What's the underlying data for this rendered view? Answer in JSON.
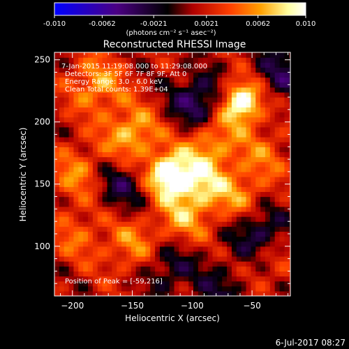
{
  "chart_data": {
    "type": "heatmap",
    "title": "Reconstructed RHESSI Image",
    "xlabel": "Heliocentric X (arcsec)",
    "ylabel": "Heliocentric Y (arcsec)",
    "xlim": [
      -215,
      -18
    ],
    "ylim": [
      60,
      256
    ],
    "xticks": [
      -200,
      -150,
      -100,
      -50
    ],
    "yticks": [
      100,
      150,
      200,
      250
    ],
    "colorbar": {
      "ticks": [
        "-0.010",
        "-0.0062",
        "-0.0021",
        "0.0021",
        "0.0062",
        "0.010"
      ],
      "range": [
        -0.01,
        0.01
      ],
      "colormap": [
        "#0000ff",
        "#4b0082",
        "#000000",
        "#b00000",
        "#ff4000",
        "#ffa000",
        "#ffffa0",
        "#ffffff"
      ]
    },
    "annotations": {
      "time": "7-Jan-2015 11:19:08.000 to 11:29:08.000",
      "detectors": "Detectors: 3F 5F 6F 7F 8F 9F, Att 0",
      "energy": "Energy Range: 3.0 - 6.0 keV",
      "clean": "Clean    Total counts: 1.39E+04",
      "peak": "Position of Peak = [-59,216]"
    },
    "peak": [
      -59,
      216
    ],
    "sources": [
      {
        "x": -120,
        "y": 158,
        "value": 0.0095
      },
      {
        "x": -59,
        "y": 216,
        "value": 0.01
      },
      {
        "x": -150,
        "y": 190,
        "value": 0.006
      },
      {
        "x": -85,
        "y": 185,
        "value": 0.005
      },
      {
        "x": -180,
        "y": 230,
        "value": 0.005
      },
      {
        "x": -95,
        "y": 150,
        "value": 0.006
      },
      {
        "x": -195,
        "y": 160,
        "value": 0.004
      },
      {
        "x": -60,
        "y": 140,
        "value": 0.004
      },
      {
        "x": -150,
        "y": 100,
        "value": 0.004
      },
      {
        "x": -110,
        "y": 120,
        "value": 0.004
      },
      {
        "x": -195,
        "y": 110,
        "value": 0.003
      },
      {
        "x": -40,
        "y": 90,
        "value": 0.003
      },
      {
        "x": -40,
        "y": 175,
        "value": 0.003
      }
    ],
    "negative_regions": [
      {
        "x": -95,
        "y": 215,
        "value": -0.006
      },
      {
        "x": -45,
        "y": 110,
        "value": -0.006
      },
      {
        "x": -160,
        "y": 150,
        "value": -0.004
      },
      {
        "x": -25,
        "y": 240,
        "value": -0.004
      },
      {
        "x": -120,
        "y": 85,
        "value": -0.004
      },
      {
        "x": -75,
        "y": 65,
        "value": -0.003
      }
    ]
  },
  "footer": {
    "timestamp": "6-Jul-2017 08:27",
    "colorbar_units": "(photons cm⁻² s⁻¹ asec⁻²)"
  }
}
